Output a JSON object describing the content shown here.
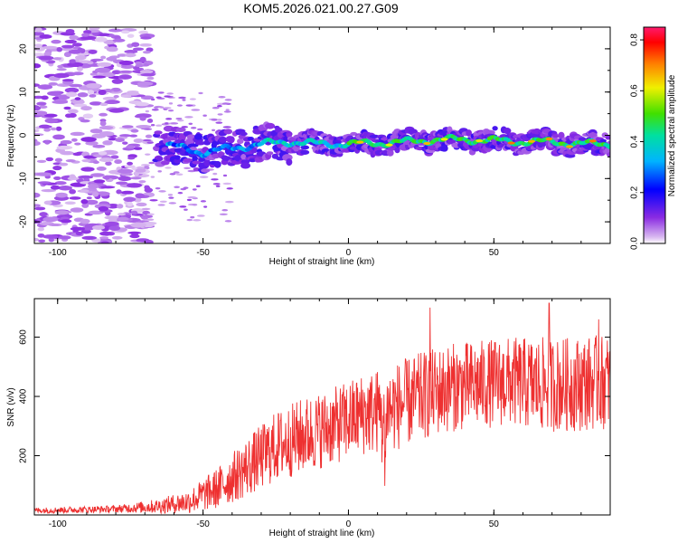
{
  "title": "KOM5.2026.021.00.27.G09",
  "chart_data": [
    {
      "type": "heatmap",
      "title": "KOM5.2026.021.00.27.G09",
      "xlabel": "Height of straight line (km)",
      "ylabel": "Frequency (Hz)",
      "xlim": [
        -108,
        90
      ],
      "ylim": [
        -25,
        25
      ],
      "xticks": [
        -100,
        -50,
        0,
        50
      ],
      "yticks": [
        -20,
        -10,
        0,
        10,
        20
      ],
      "colorbar": {
        "label": "Normalized spectral amplitude",
        "range": [
          0.0,
          0.85
        ],
        "ticks": [
          "0.0",
          "0.2",
          "0.4",
          "0.6",
          "0.8"
        ],
        "tick_values": [
          0.0,
          0.2,
          0.4,
          0.6,
          0.8
        ],
        "colormap": "rainbow"
      },
      "ridge": [
        {
          "x": -60,
          "f": -2.5
        },
        {
          "x": -50,
          "f": -4.0
        },
        {
          "x": -40,
          "f": -3.0
        },
        {
          "x": -30,
          "f": -2.0
        },
        {
          "x": -20,
          "f": -1.5
        },
        {
          "x": -10,
          "f": -2.0
        },
        {
          "x": 0,
          "f": -2.0
        },
        {
          "x": 10,
          "f": -1.8
        },
        {
          "x": 20,
          "f": -1.5
        },
        {
          "x": 30,
          "f": -1.0
        },
        {
          "x": 40,
          "f": -1.0
        },
        {
          "x": 50,
          "f": -1.2
        },
        {
          "x": 60,
          "f": -1.5
        },
        {
          "x": 70,
          "f": -1.5
        },
        {
          "x": 80,
          "f": -2.0
        },
        {
          "x": 90,
          "f": -2.0
        }
      ]
    },
    {
      "type": "line",
      "xlabel": "Height of straight line (km)",
      "ylabel": "SNR (v/v)",
      "xlim": [
        -108,
        90
      ],
      "ylim": [
        0,
        730
      ],
      "xticks": [
        -100,
        -50,
        0,
        50
      ],
      "yticks": [
        200,
        400,
        600
      ],
      "color": "#ee3030",
      "envelope": [
        {
          "x": -108,
          "mean": 15,
          "spread": 10
        },
        {
          "x": -80,
          "mean": 20,
          "spread": 12
        },
        {
          "x": -65,
          "mean": 30,
          "spread": 25
        },
        {
          "x": -55,
          "mean": 45,
          "spread": 40
        },
        {
          "x": -45,
          "mean": 90,
          "spread": 70
        },
        {
          "x": -35,
          "mean": 160,
          "spread": 100
        },
        {
          "x": -25,
          "mean": 230,
          "spread": 120
        },
        {
          "x": -15,
          "mean": 270,
          "spread": 130
        },
        {
          "x": -5,
          "mean": 300,
          "spread": 130
        },
        {
          "x": 5,
          "mean": 340,
          "spread": 140
        },
        {
          "x": 15,
          "mean": 360,
          "spread": 150
        },
        {
          "x": 25,
          "mean": 400,
          "spread": 150
        },
        {
          "x": 35,
          "mean": 430,
          "spread": 150
        },
        {
          "x": 45,
          "mean": 440,
          "spread": 150
        },
        {
          "x": 55,
          "mean": 450,
          "spread": 150
        },
        {
          "x": 65,
          "mean": 440,
          "spread": 160
        },
        {
          "x": 75,
          "mean": 440,
          "spread": 160
        },
        {
          "x": 90,
          "mean": 450,
          "spread": 160
        }
      ],
      "peaks": [
        {
          "x": 28,
          "y": 700
        },
        {
          "x": 69,
          "y": 715
        },
        {
          "x": 86,
          "y": 660
        }
      ]
    }
  ]
}
